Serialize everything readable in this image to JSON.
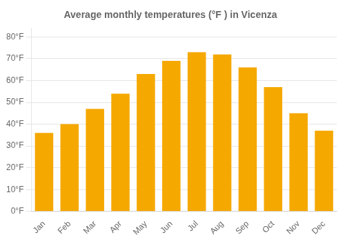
{
  "chart_data": {
    "type": "bar",
    "title": "Average monthly temperatures (°F ) in Vicenza",
    "categories": [
      "Jan",
      "Feb",
      "Mar",
      "Apr",
      "May",
      "Jun",
      "Jul",
      "Aug",
      "Sep",
      "Oct",
      "Nov",
      "Dec"
    ],
    "values": [
      36,
      40,
      47,
      54,
      63,
      69,
      73,
      72,
      66,
      57,
      45,
      37
    ],
    "color": "#F5A800",
    "ylim": [
      0,
      84
    ],
    "yticks": [
      {
        "value": 0,
        "label": "0°F"
      },
      {
        "value": 10,
        "label": "10°F"
      },
      {
        "value": 20,
        "label": "20°F"
      },
      {
        "value": 30,
        "label": "30°F"
      },
      {
        "value": 40,
        "label": "40°F"
      },
      {
        "value": 50,
        "label": "50°F"
      },
      {
        "value": 60,
        "label": "60°F"
      },
      {
        "value": 70,
        "label": "70°F"
      },
      {
        "value": 80,
        "label": "80°F"
      }
    ],
    "grid": true
  }
}
